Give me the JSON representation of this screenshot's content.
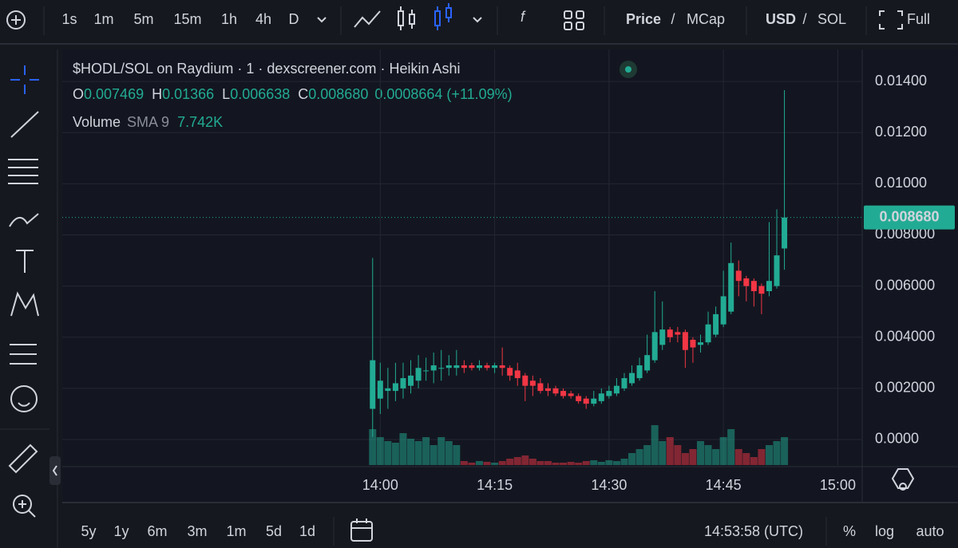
{
  "toolbar": {
    "intervals": [
      "1s",
      "1m",
      "5m",
      "15m",
      "1h",
      "4h",
      "D"
    ],
    "active_interval_index": 1,
    "indicator": "f",
    "price_toggle": [
      "Price",
      "/",
      "MCap"
    ],
    "currency_toggle": [
      "USD",
      "/",
      "SOL"
    ],
    "full": "Full"
  },
  "legend": {
    "title": "$HODL/SOL on Raydium · 1 · dexscreener.com · Heikin Ashi",
    "ohlc": [
      {
        "label": "O",
        "value": "0.007469"
      },
      {
        "label": "H",
        "value": "0.01366"
      },
      {
        "label": "L",
        "value": "0.006638"
      },
      {
        "label": "C",
        "value": "0.008680"
      }
    ],
    "change": "0.0008664 (+11.09%)",
    "volume_label": "Volume",
    "sma": "SMA 9",
    "sma_value": "7.742K"
  },
  "chart_data": {
    "type": "candlestick",
    "x": [
      -1,
      0,
      1,
      2,
      3,
      4,
      5,
      6,
      7,
      8,
      9,
      10,
      11,
      12,
      13,
      14,
      15,
      16,
      17,
      18,
      19,
      20,
      21,
      22,
      23,
      24,
      25,
      26,
      27,
      28,
      29,
      30,
      31,
      32,
      33,
      34,
      35,
      36,
      37,
      38,
      39,
      40,
      41,
      42,
      43,
      44,
      45,
      46,
      47,
      48,
      49,
      50,
      51,
      52,
      53
    ],
    "open": [
      0.0012,
      0.0016,
      0.0019,
      0.0019,
      0.002,
      0.0021,
      0.0023,
      0.0027,
      0.0027,
      0.0028,
      0.0028,
      0.0028,
      0.0029,
      0.0029,
      0.0028,
      0.0029,
      0.0028,
      0.0029,
      0.0028,
      0.0027,
      0.0025,
      0.0023,
      0.0022,
      0.002,
      0.002,
      0.0019,
      0.0018,
      0.0017,
      0.0016,
      0.0014,
      0.0015,
      0.0017,
      0.0018,
      0.002,
      0.0022,
      0.0024,
      0.0027,
      0.0031,
      0.0037,
      0.0043,
      0.0042,
      0.0042,
      0.0039,
      0.0037,
      0.0038,
      0.0041,
      0.0045,
      0.005,
      0.0066,
      0.0063,
      0.0062,
      0.006,
      0.0058,
      0.006,
      0.007469
    ],
    "high": [
      0.0071,
      0.003,
      0.0028,
      0.003,
      0.003,
      0.0031,
      0.0033,
      0.0032,
      0.0034,
      0.0035,
      0.0033,
      0.0035,
      0.0031,
      0.003,
      0.0031,
      0.003,
      0.003,
      0.0036,
      0.0029,
      0.003,
      0.0026,
      0.0025,
      0.0024,
      0.0022,
      0.0021,
      0.002,
      0.0019,
      0.0018,
      0.0017,
      0.0019,
      0.002,
      0.0021,
      0.0024,
      0.0026,
      0.0029,
      0.0032,
      0.0041,
      0.0058,
      0.0054,
      0.0044,
      0.0044,
      0.0043,
      0.004,
      0.0041,
      0.005,
      0.0052,
      0.0066,
      0.0077,
      0.007,
      0.0064,
      0.0063,
      0.0061,
      0.0085,
      0.009,
      0.01366
    ],
    "low": [
      0.0001,
      0.001,
      0.0012,
      0.0015,
      0.0016,
      0.0018,
      0.002,
      0.0023,
      0.0022,
      0.0023,
      0.0025,
      0.0025,
      0.0026,
      0.0027,
      0.0027,
      0.0027,
      0.0026,
      0.0025,
      0.0023,
      0.0021,
      0.0015,
      0.0017,
      0.0018,
      0.0017,
      0.0017,
      0.0016,
      0.0016,
      0.0014,
      0.0012,
      0.0013,
      0.0014,
      0.0016,
      0.0017,
      0.0019,
      0.0021,
      0.0023,
      0.0026,
      0.003,
      0.0035,
      0.0038,
      0.0038,
      0.0028,
      0.003,
      0.0034,
      0.0037,
      0.004,
      0.0044,
      0.0049,
      0.0056,
      0.0054,
      0.0052,
      0.0049,
      0.0056,
      0.0059,
      0.006638
    ],
    "close": [
      0.0031,
      0.0023,
      0.002,
      0.0022,
      0.0024,
      0.0025,
      0.0028,
      0.0027,
      0.0029,
      0.0028,
      0.0029,
      0.0029,
      0.0028,
      0.0028,
      0.0029,
      0.0028,
      0.0029,
      0.0028,
      0.0025,
      0.0024,
      0.0021,
      0.0021,
      0.0019,
      0.0019,
      0.0018,
      0.0017,
      0.0017,
      0.0015,
      0.0014,
      0.0016,
      0.0018,
      0.0019,
      0.0021,
      0.0024,
      0.0026,
      0.0029,
      0.0033,
      0.0042,
      0.0043,
      0.004,
      0.0041,
      0.0035,
      0.0036,
      0.0038,
      0.0045,
      0.0049,
      0.0056,
      0.0069,
      0.0062,
      0.006,
      0.0058,
      0.0057,
      0.0062,
      0.0072,
      0.00868
    ],
    "volume": [
      45,
      35,
      30,
      28,
      40,
      33,
      30,
      35,
      25,
      35,
      30,
      25,
      5,
      3,
      5,
      4,
      3,
      5,
      8,
      10,
      12,
      8,
      5,
      5,
      3,
      3,
      4,
      3,
      5,
      6,
      4,
      6,
      5,
      8,
      15,
      20,
      25,
      50,
      30,
      35,
      25,
      15,
      20,
      30,
      25,
      20,
      35,
      45,
      20,
      15,
      10,
      20,
      25,
      30,
      35
    ],
    "up_color": "#22ab94",
    "down_color": "#f23645",
    "xlim": [
      -41.7,
      63.2
    ],
    "xticks": [
      {
        "value": 0,
        "label": "14:00"
      },
      {
        "value": 15,
        "label": "14:15"
      },
      {
        "value": 30,
        "label": "14:30"
      },
      {
        "value": 45,
        "label": "14:45"
      },
      {
        "value": 60,
        "label": "15:00"
      }
    ],
    "ylim": [
      -0.000998,
      0.01525
    ],
    "yticks": [
      {
        "value": 0,
        "label": "0.0000"
      },
      {
        "value": 0.002,
        "label": "0.002000"
      },
      {
        "value": 0.004,
        "label": "0.004000"
      },
      {
        "value": 0.006,
        "label": "0.006000"
      },
      {
        "value": 0.008,
        "label": "0.008000"
      },
      {
        "value": 0.01,
        "label": "0.01000"
      },
      {
        "value": 0.012,
        "label": "0.01200"
      },
      {
        "value": 0.014,
        "label": "0.01400"
      }
    ],
    "last_price": {
      "value": 0.00868,
      "label": "0.008680"
    },
    "grid": true
  },
  "bottom_bar": {
    "ranges": [
      "5y",
      "1y",
      "6m",
      "3m",
      "1m",
      "5d",
      "1d"
    ],
    "time": "14:53:58 (UTC)",
    "options": [
      "%",
      "log",
      "auto"
    ]
  }
}
